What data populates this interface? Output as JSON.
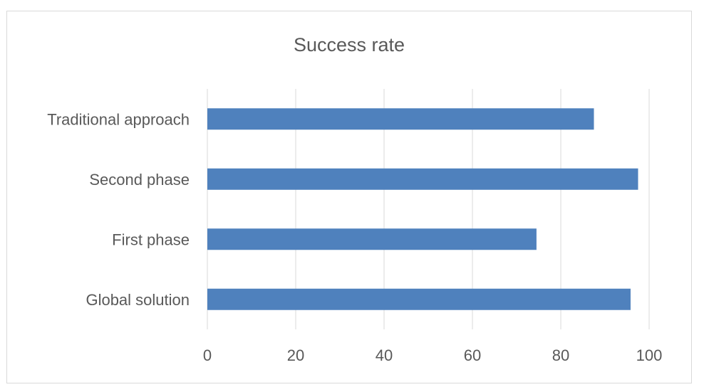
{
  "chart_data": {
    "type": "bar",
    "orientation": "horizontal",
    "title": "Success rate",
    "categories": [
      "Traditional approach",
      "Second phase",
      "First phase",
      "Global solution"
    ],
    "values": [
      87.5,
      97.5,
      74.5,
      95.8
    ],
    "xlim": [
      0,
      100
    ],
    "xticks": [
      "0",
      "20",
      "40",
      "60",
      "80",
      "100"
    ],
    "grid": true,
    "legend": "none",
    "bar_color": "#4f81bd",
    "grid_color": "#d9d9d9"
  }
}
